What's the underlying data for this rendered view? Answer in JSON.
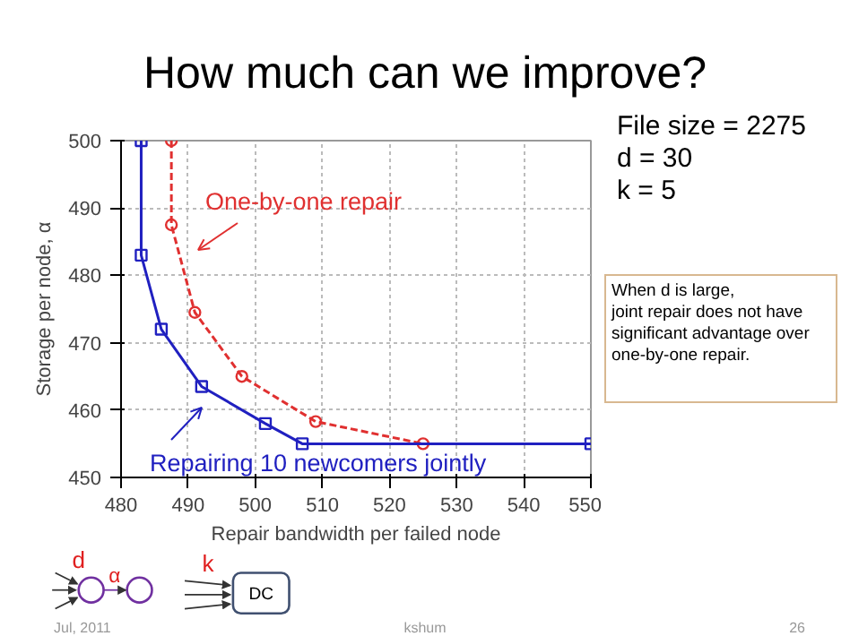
{
  "chart_data": {
    "type": "line",
    "title": "How much can we improve?",
    "xlabel": "Repair bandwidth per failed node",
    "ylabel": "Storage per node, α",
    "xlim": [
      480,
      550
    ],
    "xticks": [
      480,
      490,
      500,
      510,
      520,
      530,
      540,
      550
    ],
    "ylim": [
      450,
      500
    ],
    "yticks": [
      450,
      460,
      470,
      480,
      490,
      500
    ],
    "grid": true,
    "series": [
      {
        "name": "One-by-one repair",
        "color": "#e03030",
        "line_style": "dashed",
        "marker": "circle",
        "x": [
          487.5,
          487.5,
          491,
          498,
          509,
          525
        ],
        "values": [
          500,
          487.5,
          474.5,
          465,
          458.3,
          455
        ]
      },
      {
        "name": "Repairing 10 newcomers jointly",
        "color": "#2020c0",
        "line_style": "solid",
        "marker": "square",
        "x": [
          483,
          483,
          486,
          492,
          501.5,
          507,
          550
        ],
        "values": [
          500,
          483,
          472,
          463.5,
          458,
          455,
          455
        ]
      }
    ],
    "annotations": [
      "File size = 2275",
      "d = 30",
      "k = 5",
      "When d is large,\njoint repair does not have\nsignificant advantage over\none-by-one repair.",
      "d",
      "α",
      "k",
      "DC",
      "Jul, 2011",
      "kshum",
      "26"
    ]
  }
}
